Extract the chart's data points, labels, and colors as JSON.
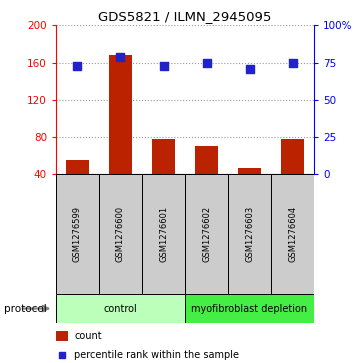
{
  "title": "GDS5821 / ILMN_2945095",
  "samples": [
    "GSM1276599",
    "GSM1276600",
    "GSM1276601",
    "GSM1276602",
    "GSM1276603",
    "GSM1276604"
  ],
  "counts": [
    55,
    168,
    78,
    70,
    47,
    78
  ],
  "percentile_ranks": [
    73,
    79,
    73,
    75,
    71,
    75
  ],
  "ylim_left": [
    40,
    200
  ],
  "ylim_right": [
    0,
    100
  ],
  "yticks_left": [
    40,
    80,
    120,
    160,
    200
  ],
  "yticks_right": [
    0,
    25,
    50,
    75,
    100
  ],
  "ytick_labels_left": [
    "40",
    "80",
    "120",
    "160",
    "200"
  ],
  "ytick_labels_right": [
    "0",
    "25",
    "50",
    "75",
    "100%"
  ],
  "bar_color": "#bb2200",
  "dot_color": "#2222cc",
  "protocols": [
    {
      "label": "control",
      "samples_range": [
        0,
        2
      ],
      "color": "#bbffbb"
    },
    {
      "label": "myofibroblast depletion",
      "samples_range": [
        3,
        5
      ],
      "color": "#44ee44"
    }
  ],
  "protocol_label": "protocol",
  "legend_count_label": "count",
  "legend_pct_label": "percentile rank within the sample",
  "bg_label_boxes": "#cccccc",
  "grid_linestyle": "dotted"
}
